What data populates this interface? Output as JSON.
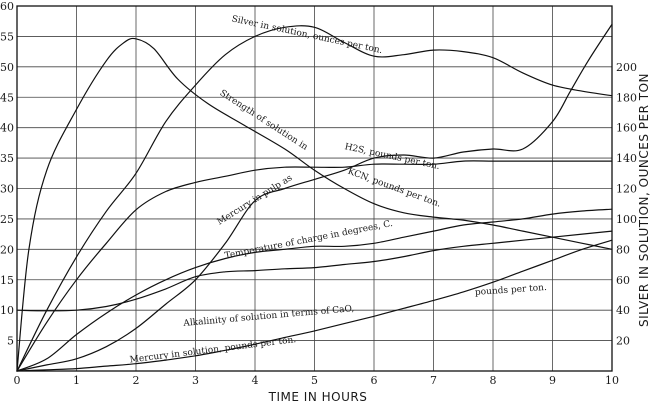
{
  "chart_data": {
    "type": "line",
    "xlabel": "TIME IN HOURS",
    "ylabel": "",
    "ylabel_right": "SILVER IN SOLUTION, OUNCES PER TON",
    "xlim": [
      0,
      10
    ],
    "ylim": [
      0,
      60
    ],
    "ylim_right": [
      0,
      240
    ],
    "x_ticks": [
      "0",
      "1",
      "2",
      "3",
      "4",
      "5",
      "6",
      "7",
      "8",
      "9",
      "10"
    ],
    "y_ticks": [
      "5",
      "10",
      "15",
      "20",
      "25",
      "30",
      "35",
      "40",
      "45",
      "50",
      "55",
      "60"
    ],
    "y_ticks_right": [
      "20",
      "40",
      "60",
      "80",
      "100",
      "120",
      "140",
      "160",
      "180",
      "200"
    ],
    "grid": true,
    "legend": "none",
    "series": [
      {
        "name": "Strength of solution in KCN, pounds per ton.",
        "axis": "left",
        "x": [
          0,
          0.2,
          0.5,
          1.0,
          1.5,
          1.8,
          2.0,
          2.3,
          2.7,
          3.2,
          3.8,
          4.5,
          5.0,
          5.5,
          6.0,
          6.5,
          7.0,
          7.5,
          8.0,
          8.5,
          9.0,
          9.5,
          10.0
        ],
        "y": [
          0,
          20,
          33,
          43,
          51,
          54,
          54.6,
          53,
          48,
          44,
          40.5,
          36.5,
          33,
          30,
          27.5,
          26,
          25.3,
          24.8,
          24,
          23,
          22,
          21,
          20
        ]
      },
      {
        "name": "Silver in solution, ounces per ton.",
        "axis": "right",
        "x": [
          0,
          0.5,
          1.0,
          1.5,
          2.0,
          2.5,
          3.0,
          3.5,
          4.0,
          4.5,
          5.0,
          5.5,
          6.0,
          6.5,
          7.0,
          7.5,
          8.0,
          8.5,
          9.0,
          9.5,
          10.0
        ],
        "y": [
          0,
          40,
          75,
          105,
          130,
          164,
          188,
          208,
          220,
          226,
          226,
          216,
          207,
          208,
          211,
          210,
          206,
          196,
          188,
          184,
          181
        ]
      },
      {
        "name": "H2S, pounds per ton.",
        "axis": "left",
        "x": [
          0,
          0.5,
          1.0,
          1.5,
          2.0,
          2.5,
          3.0,
          3.5,
          4.0,
          4.5,
          5.0,
          5.5,
          6.0,
          6.5,
          7.0,
          7.5,
          8.0,
          8.5,
          9.0,
          9.3,
          9.6,
          10.0
        ],
        "y": [
          0,
          1,
          2,
          4,
          7,
          11,
          15,
          21,
          28,
          30,
          31.5,
          33,
          35,
          35.5,
          35,
          36,
          36.5,
          36.5,
          41,
          46,
          51,
          57
        ]
      },
      {
        "name": "Mercury in pulp as",
        "axis": "left",
        "x": [
          0,
          0.5,
          1.0,
          1.5,
          2.0,
          2.5,
          3.0,
          3.5,
          4.0,
          4.5,
          5.0,
          5.5,
          6.0,
          6.5,
          7.0,
          7.5,
          8.0,
          8.5,
          9.0,
          9.5,
          10.0
        ],
        "y": [
          0,
          8,
          15,
          21,
          26.5,
          29.5,
          31,
          32,
          33,
          33.5,
          33.5,
          33.5,
          34,
          34,
          34,
          34.5,
          34.5,
          34.5,
          34.5,
          34.5,
          34.5
        ]
      },
      {
        "name": "Temperature of charge in degrees, C.",
        "axis": "left",
        "x": [
          0,
          0.5,
          1.0,
          1.5,
          2.0,
          2.5,
          3.0,
          3.5,
          4.0,
          4.5,
          5.0,
          5.5,
          6.0,
          6.5,
          7.0,
          7.5,
          8.0,
          8.5,
          9.0,
          9.5,
          10.0
        ],
        "y": [
          0,
          2,
          6,
          9.5,
          12.5,
          15,
          17,
          18.5,
          19.5,
          20,
          20.5,
          20.5,
          21,
          22,
          23,
          24,
          24.5,
          25,
          25.8,
          26.3,
          26.6
        ]
      },
      {
        "name": "Alkalinity of solution in terms of CaO, pounds per ton.",
        "axis": "left",
        "x": [
          0,
          0.5,
          1.0,
          1.5,
          2.0,
          2.5,
          3.0,
          3.5,
          4.0,
          4.5,
          5.0,
          5.5,
          6.0,
          6.5,
          7.0,
          7.5,
          8.0,
          8.5,
          9.0,
          9.5,
          10.0
        ],
        "y": [
          10,
          9.9,
          10,
          10.6,
          11.8,
          13.5,
          15.5,
          16.3,
          16.5,
          16.8,
          17,
          17.5,
          18,
          18.8,
          19.8,
          20.5,
          21,
          21.5,
          22,
          22.5,
          23
        ]
      },
      {
        "name": "Mercury in solution, pounds per ton.",
        "axis": "left",
        "x": [
          0,
          0.5,
          1.0,
          1.5,
          2.0,
          2.5,
          3.0,
          3.5,
          4.0,
          4.5,
          5.0,
          5.5,
          6.0,
          6.5,
          7.0,
          7.5,
          8.0,
          8.5,
          9.0,
          9.5,
          10.0
        ],
        "y": [
          0,
          0.2,
          0.4,
          0.8,
          1.2,
          1.8,
          2.5,
          3.4,
          4.4,
          5.5,
          6.6,
          7.8,
          9.0,
          10.3,
          11.6,
          13.0,
          14.6,
          16.4,
          18.2,
          20.0,
          21.5
        ]
      }
    ],
    "annotations": [
      {
        "text": "Silver in solution, ounces per ton.",
        "x": 3.6,
        "y": 57.5,
        "rotate": 12
      },
      {
        "text": "Strength of solution in",
        "x": 3.4,
        "y": 45.5,
        "rotate": 33
      },
      {
        "text": "KCN, pounds per ton.",
        "x": 5.55,
        "y": 32.5,
        "rotate": 20
      },
      {
        "text": "H2S, pounds per ton.",
        "x": 5.5,
        "y": 36.5,
        "rotate": 12
      },
      {
        "text": "Mercury in pulp as",
        "x": 3.4,
        "y": 24,
        "rotate": -32
      },
      {
        "text": "Temperature of charge in degrees, C.",
        "x": 3.5,
        "y": 18.5,
        "rotate": -11
      },
      {
        "text": "Alkalinity of solution in terms of CaO,",
        "x": 2.8,
        "y": 7.4,
        "rotate": -5
      },
      {
        "text": "pounds per ton.",
        "x": 7.7,
        "y": 12.5,
        "rotate": -4
      },
      {
        "text": "Mercury in solution, pounds per ton.",
        "x": 1.9,
        "y": 1.4,
        "rotate": -7
      }
    ]
  }
}
